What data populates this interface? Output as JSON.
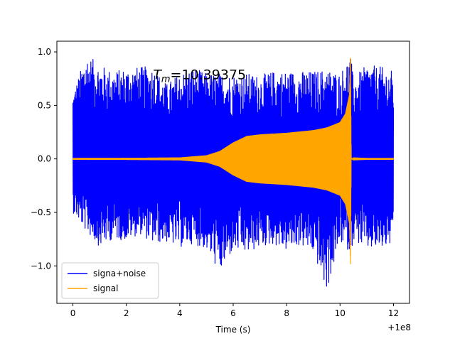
{
  "chart_data": {
    "type": "line",
    "xlabel": "Time (s)",
    "ylabel": "",
    "xlim": [
      -0.6,
      12.6
    ],
    "ylim": [
      -1.35,
      1.1
    ],
    "x_offset_label": "+1e8",
    "xticks": [
      0,
      2,
      4,
      6,
      8,
      10,
      12
    ],
    "yticks": [
      -1.0,
      -0.5,
      0.0,
      0.5,
      1.0
    ],
    "xtick_labels": [
      "0",
      "2",
      "4",
      "6",
      "8",
      "10",
      "12"
    ],
    "ytick_labels": [
      "−1.0",
      "−0.5",
      "0.0",
      "0.5",
      "1.0"
    ],
    "annotation": {
      "prefix": "T",
      "subscript": "m",
      "text": "=10.39375",
      "x": 3.0,
      "y": 0.79
    },
    "legend": {
      "placement": "lower-left",
      "entries": [
        {
          "label": "signa+noise",
          "color": "#0000ff"
        },
        {
          "label": "signal",
          "color": "#ffa500"
        }
      ]
    },
    "series": [
      {
        "name": "signa+noise",
        "color": "#0000ff",
        "x": [
          0.0,
          0.5,
          1.0,
          1.5,
          2.0,
          2.5,
          3.0,
          3.5,
          4.0,
          4.5,
          5.0,
          5.5,
          6.0,
          6.5,
          7.0,
          7.5,
          8.0,
          8.5,
          9.0,
          9.5,
          10.0,
          10.39,
          10.5,
          11.0,
          11.5,
          12.0
        ],
        "upper": [
          0.62,
          0.98,
          0.88,
          0.82,
          0.85,
          0.86,
          0.86,
          0.7,
          0.8,
          0.85,
          0.8,
          0.8,
          0.79,
          0.8,
          0.78,
          0.82,
          0.82,
          0.82,
          0.82,
          0.84,
          0.8,
          0.98,
          0.75,
          0.88,
          0.86,
          0.82
        ],
        "lower": [
          -0.5,
          -0.68,
          -0.82,
          -0.75,
          -0.76,
          -0.7,
          -0.79,
          -0.78,
          -0.83,
          -0.79,
          -0.85,
          -1.07,
          -0.86,
          -0.89,
          -0.83,
          -0.8,
          -0.86,
          -0.81,
          -0.88,
          -1.24,
          -0.78,
          -0.88,
          -0.76,
          -0.85,
          -0.85,
          -0.8
        ]
      },
      {
        "name": "signal",
        "color": "#ffa500",
        "x": [
          0.0,
          2.0,
          4.0,
          5.0,
          5.5,
          6.0,
          6.5,
          7.0,
          8.0,
          9.0,
          9.5,
          10.0,
          10.2,
          10.35,
          10.39,
          10.42,
          10.5,
          11.0,
          12.0
        ],
        "amplitude": [
          0.005,
          0.006,
          0.01,
          0.03,
          0.07,
          0.15,
          0.21,
          0.225,
          0.24,
          0.265,
          0.29,
          0.34,
          0.42,
          0.6,
          1.0,
          0.0,
          0.01,
          0.005,
          0.005
        ]
      }
    ]
  }
}
